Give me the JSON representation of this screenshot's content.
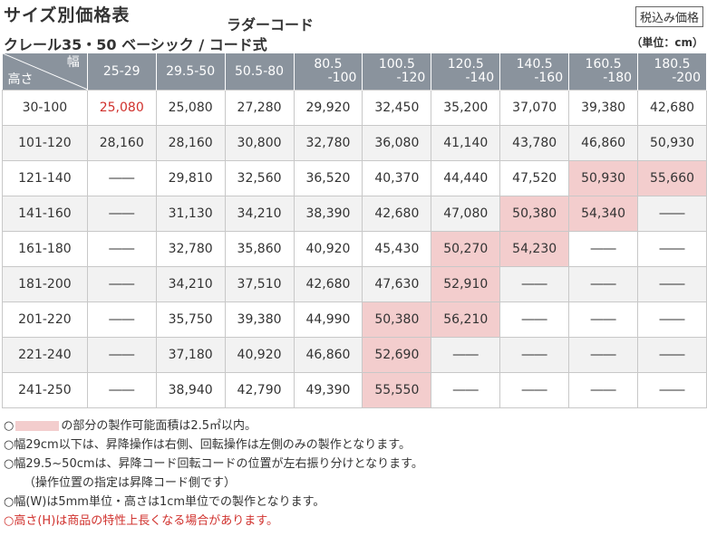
{
  "header": {
    "title": "サイズ別価格表",
    "type_label": "ラダーコード",
    "subtitle": "クレール35・50 ベーシック / コード式",
    "tax_label": "税込み価格",
    "unit_label": "（単位：cm）"
  },
  "table": {
    "corner_width_label": "幅",
    "corner_height_label": "高さ",
    "columns": [
      {
        "line1": "25-29",
        "line2": ""
      },
      {
        "line1": "29.5-50",
        "line2": ""
      },
      {
        "line1": "50.5-80",
        "line2": ""
      },
      {
        "line1": "80.5",
        "line2": "-100"
      },
      {
        "line1": "100.5",
        "line2": "-120"
      },
      {
        "line1": "120.5",
        "line2": "-140"
      },
      {
        "line1": "140.5",
        "line2": "-160"
      },
      {
        "line1": "160.5",
        "line2": "-180"
      },
      {
        "line1": "180.5",
        "line2": "-200"
      }
    ],
    "rows": [
      {
        "height": "30-100",
        "cells": [
          "25,080",
          "25,080",
          "27,280",
          "29,920",
          "32,450",
          "35,200",
          "37,070",
          "39,380",
          "42,680"
        ]
      },
      {
        "height": "101-120",
        "cells": [
          "28,160",
          "28,160",
          "30,800",
          "32,780",
          "36,080",
          "41,140",
          "43,780",
          "46,860",
          "50,930"
        ]
      },
      {
        "height": "121-140",
        "cells": [
          "――",
          "29,810",
          "32,560",
          "36,520",
          "40,370",
          "44,440",
          "47,520",
          "50,930",
          "55,660"
        ]
      },
      {
        "height": "141-160",
        "cells": [
          "――",
          "31,130",
          "34,210",
          "38,390",
          "42,680",
          "47,080",
          "50,380",
          "54,340",
          "――"
        ]
      },
      {
        "height": "161-180",
        "cells": [
          "――",
          "32,780",
          "35,860",
          "40,920",
          "45,430",
          "50,270",
          "54,230",
          "――",
          "――"
        ]
      },
      {
        "height": "181-200",
        "cells": [
          "――",
          "34,210",
          "37,510",
          "42,680",
          "47,630",
          "52,910",
          "――",
          "――",
          "――"
        ]
      },
      {
        "height": "201-220",
        "cells": [
          "――",
          "35,750",
          "39,380",
          "44,990",
          "50,380",
          "56,210",
          "――",
          "――",
          "――"
        ]
      },
      {
        "height": "221-240",
        "cells": [
          "――",
          "37,180",
          "40,920",
          "46,860",
          "52,690",
          "――",
          "――",
          "――",
          "――"
        ]
      },
      {
        "height": "241-250",
        "cells": [
          "――",
          "38,940",
          "42,790",
          "49,390",
          "55,550",
          "――",
          "――",
          "――",
          "――"
        ]
      }
    ],
    "highlight_color": "#f3cdcd",
    "header_color": "#8a939d",
    "accent_red": "#d0312d"
  },
  "notes": {
    "n1_prefix": "○",
    "n1_text": "の部分の製作可能面積は2.5㎡以内。",
    "n2": "○幅29cm以下は、昇降操作は右側、回転操作は左側のみの製作となります。",
    "n3": "○幅29.5~50cmは、昇降コード回転コードの位置が左右振り分けとなります。",
    "n4": "（操作位置の指定は昇降コード側です）",
    "n5": "○幅(W)は5mm単位・高さは1cm単位での製作となります。",
    "n6": "○高さ(H)は商品の特性上長くなる場合があります。"
  }
}
